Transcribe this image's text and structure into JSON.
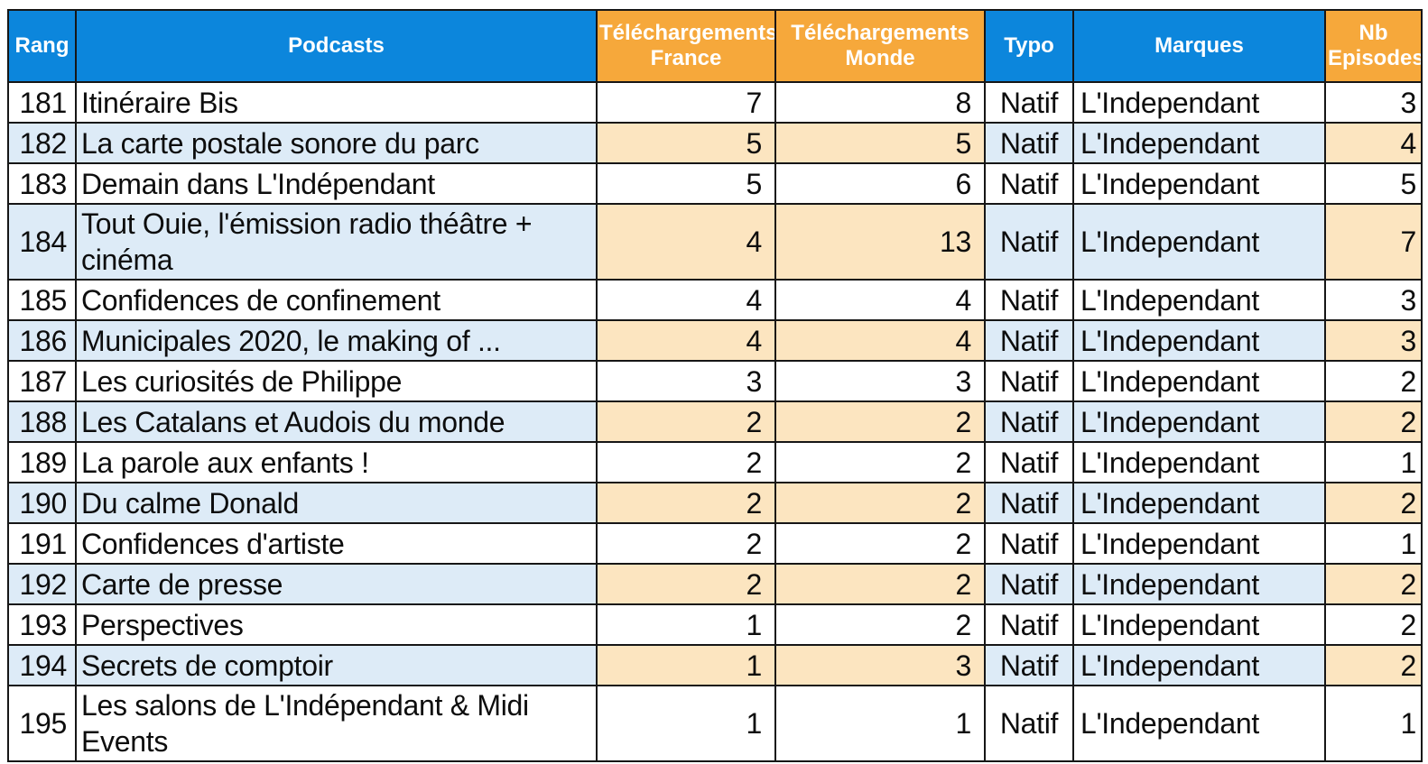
{
  "colors": {
    "header_blue": "#0C86DC",
    "header_orange": "#F6A83B",
    "row_tint_blue": "#DDEBF7",
    "row_tint_cream": "#FCE5C0",
    "row_white": "#FFFFFF",
    "grid_border": "#161616",
    "header_text": "#FFFFFF",
    "body_text": "#0D0D0D"
  },
  "table": {
    "columns": [
      {
        "key": "rang",
        "label": "Rang",
        "header_color": "blue"
      },
      {
        "key": "podcasts",
        "label": "Podcasts",
        "header_color": "blue"
      },
      {
        "key": "dl_france",
        "label": "Téléchargements France",
        "header_color": "orange"
      },
      {
        "key": "dl_monde",
        "label": "Téléchargements Monde",
        "header_color": "orange"
      },
      {
        "key": "typo",
        "label": "Typo",
        "header_color": "blue"
      },
      {
        "key": "marques",
        "label": "Marques",
        "header_color": "blue"
      },
      {
        "key": "nb_episodes",
        "label": "Nb Episodes",
        "header_color": "orange"
      }
    ],
    "rows": [
      {
        "rang": 181,
        "podcasts": "Itinéraire Bis",
        "dl_france": 7,
        "dl_monde": 8,
        "typo": "Natif",
        "marques": "L'Independant",
        "nb_episodes": 3
      },
      {
        "rang": 182,
        "podcasts": "La carte postale sonore du parc",
        "dl_france": 5,
        "dl_monde": 5,
        "typo": "Natif",
        "marques": "L'Independant",
        "nb_episodes": 4
      },
      {
        "rang": 183,
        "podcasts": "Demain dans L'Indépendant",
        "dl_france": 5,
        "dl_monde": 6,
        "typo": "Natif",
        "marques": "L'Independant",
        "nb_episodes": 5
      },
      {
        "rang": 184,
        "podcasts": "Tout Ouie, l'émission radio théâtre + cinéma",
        "dl_france": 4,
        "dl_monde": 13,
        "typo": "Natif",
        "marques": "L'Independant",
        "nb_episodes": 7
      },
      {
        "rang": 185,
        "podcasts": "Confidences de confinement",
        "dl_france": 4,
        "dl_monde": 4,
        "typo": "Natif",
        "marques": "L'Independant",
        "nb_episodes": 3
      },
      {
        "rang": 186,
        "podcasts": "Municipales 2020, le making of ...",
        "dl_france": 4,
        "dl_monde": 4,
        "typo": "Natif",
        "marques": "L'Independant",
        "nb_episodes": 3
      },
      {
        "rang": 187,
        "podcasts": "Les curiosités de Philippe",
        "dl_france": 3,
        "dl_monde": 3,
        "typo": "Natif",
        "marques": "L'Independant",
        "nb_episodes": 2
      },
      {
        "rang": 188,
        "podcasts": "Les Catalans et Audois du monde",
        "dl_france": 2,
        "dl_monde": 2,
        "typo": "Natif",
        "marques": "L'Independant",
        "nb_episodes": 2
      },
      {
        "rang": 189,
        "podcasts": "La parole aux enfants !",
        "dl_france": 2,
        "dl_monde": 2,
        "typo": "Natif",
        "marques": "L'Independant",
        "nb_episodes": 1
      },
      {
        "rang": 190,
        "podcasts": "Du calme Donald",
        "dl_france": 2,
        "dl_monde": 2,
        "typo": "Natif",
        "marques": "L'Independant",
        "nb_episodes": 2
      },
      {
        "rang": 191,
        "podcasts": "Confidences d'artiste",
        "dl_france": 2,
        "dl_monde": 2,
        "typo": "Natif",
        "marques": "L'Independant",
        "nb_episodes": 1
      },
      {
        "rang": 192,
        "podcasts": "Carte de presse",
        "dl_france": 2,
        "dl_monde": 2,
        "typo": "Natif",
        "marques": "L'Independant",
        "nb_episodes": 2
      },
      {
        "rang": 193,
        "podcasts": "Perspectives",
        "dl_france": 1,
        "dl_monde": 2,
        "typo": "Natif",
        "marques": "L'Independant",
        "nb_episodes": 2
      },
      {
        "rang": 194,
        "podcasts": "Secrets de comptoir",
        "dl_france": 1,
        "dl_monde": 3,
        "typo": "Natif",
        "marques": "L'Independant",
        "nb_episodes": 2
      },
      {
        "rang": 195,
        "podcasts": "Les salons de L'Indépendant & Midi Events",
        "dl_france": 1,
        "dl_monde": 1,
        "typo": "Natif",
        "marques": "L'Independant",
        "nb_episodes": 1
      }
    ]
  }
}
